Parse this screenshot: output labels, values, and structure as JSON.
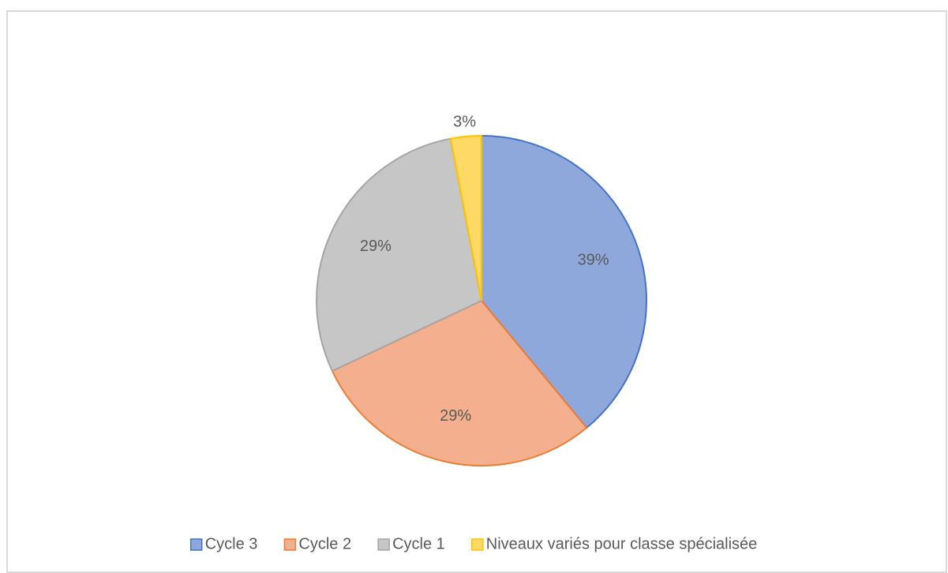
{
  "chart_data": {
    "type": "pie",
    "categories": [
      "Cycle 3",
      "Cycle 2",
      "Cycle 1",
      "Niveaux variés pour classe spécialisée"
    ],
    "values": [
      39,
      29,
      29,
      3
    ],
    "value_labels": [
      "39%",
      "29%",
      "29%",
      "3%"
    ],
    "colors": [
      "#8fa8dc",
      "#f4b08e",
      "#c6c6c6",
      "#ffd966"
    ],
    "edge_colors": [
      "#4472c4",
      "#ed7d31",
      "#a5a5a5",
      "#ffc000"
    ],
    "legend": "bottom"
  }
}
